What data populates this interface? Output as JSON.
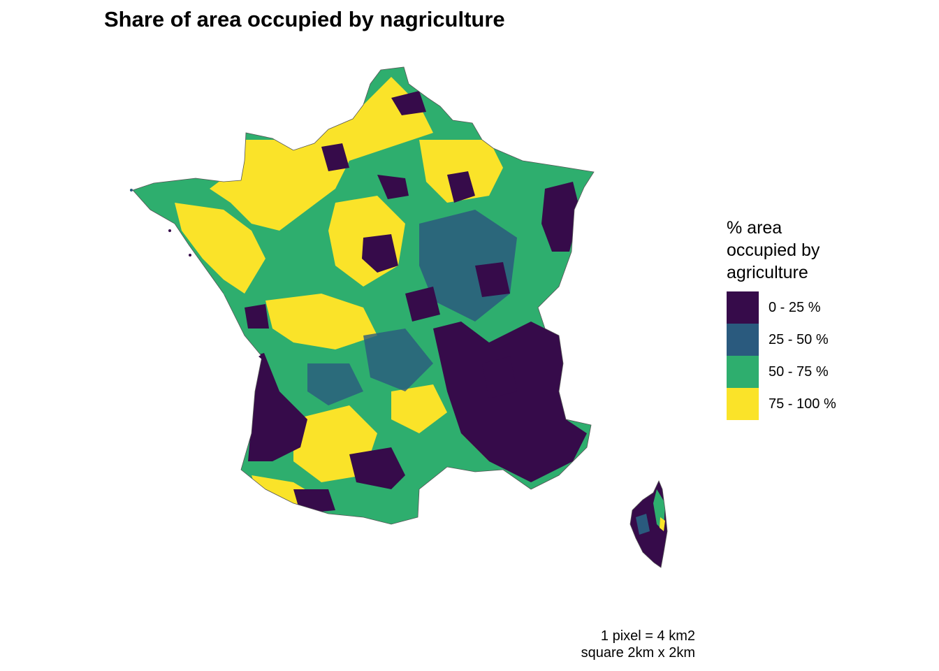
{
  "title": "Share of area occupied by nagriculture",
  "legend": {
    "title_lines": [
      "% area",
      "occupied by",
      "agriculture"
    ],
    "items": [
      {
        "label": "0 - 25 %",
        "color": "#360B4A"
      },
      {
        "label": "25 - 50 %",
        "color": "#2A5A7E"
      },
      {
        "label": "50 - 75 %",
        "color": "#2EAE6E"
      },
      {
        "label": "75 - 100 %",
        "color": "#FAE329"
      }
    ]
  },
  "caption": [
    "1 pixel = 4 km2",
    "square 2km x 2km"
  ]
}
